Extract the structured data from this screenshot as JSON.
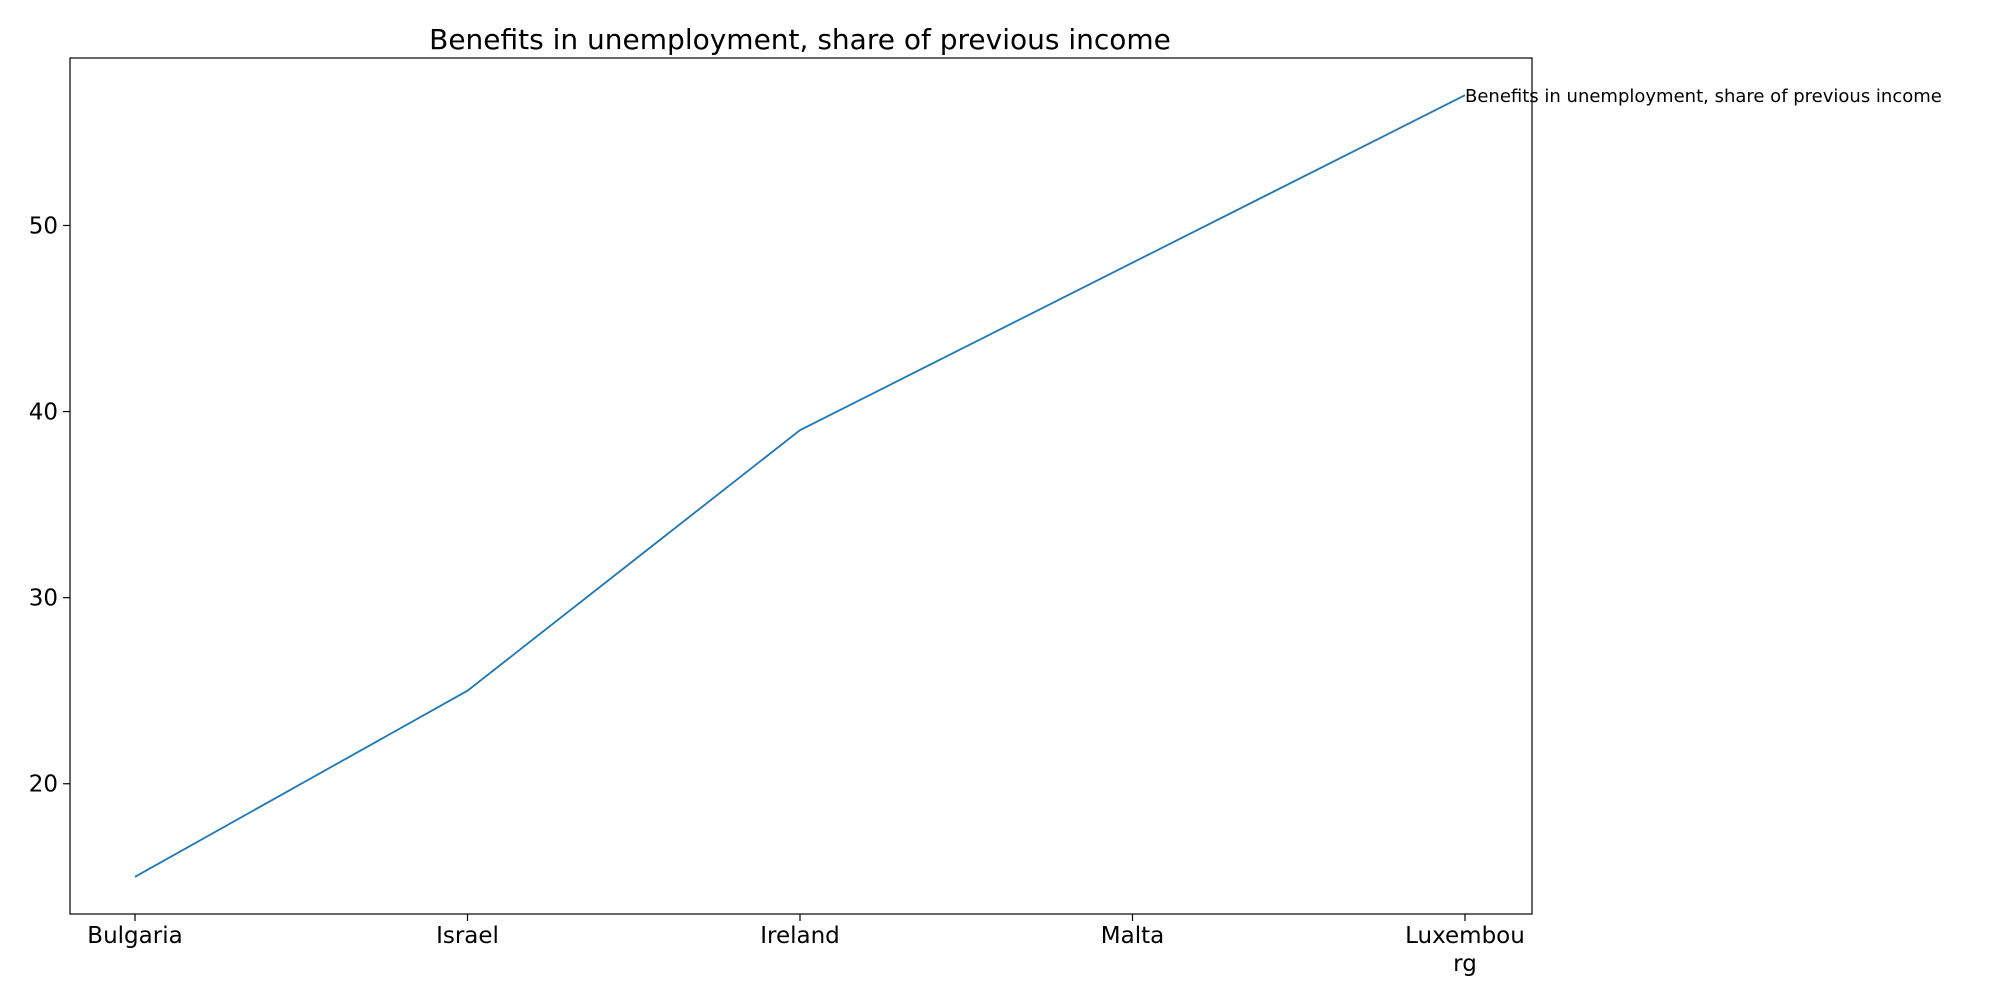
{
  "chart_data": {
    "type": "line",
    "title": "Benefits in unemployment, share of previous income",
    "xlabel": "",
    "ylabel": "",
    "categories": [
      [
        "Bulgaria"
      ],
      [
        "Israel"
      ],
      [
        "Ireland"
      ],
      [
        "Malta"
      ],
      [
        "Luxembou",
        "rg"
      ]
    ],
    "series": [
      {
        "name": "Benefits in unemployment, share of previous income",
        "values": [
          15,
          25,
          39,
          48,
          57
        ],
        "color": "#1f77b4"
      }
    ],
    "ylim": [
      13,
      59
    ],
    "yticks": [
      20,
      30,
      40,
      50
    ],
    "grid": false,
    "legend": "none"
  }
}
